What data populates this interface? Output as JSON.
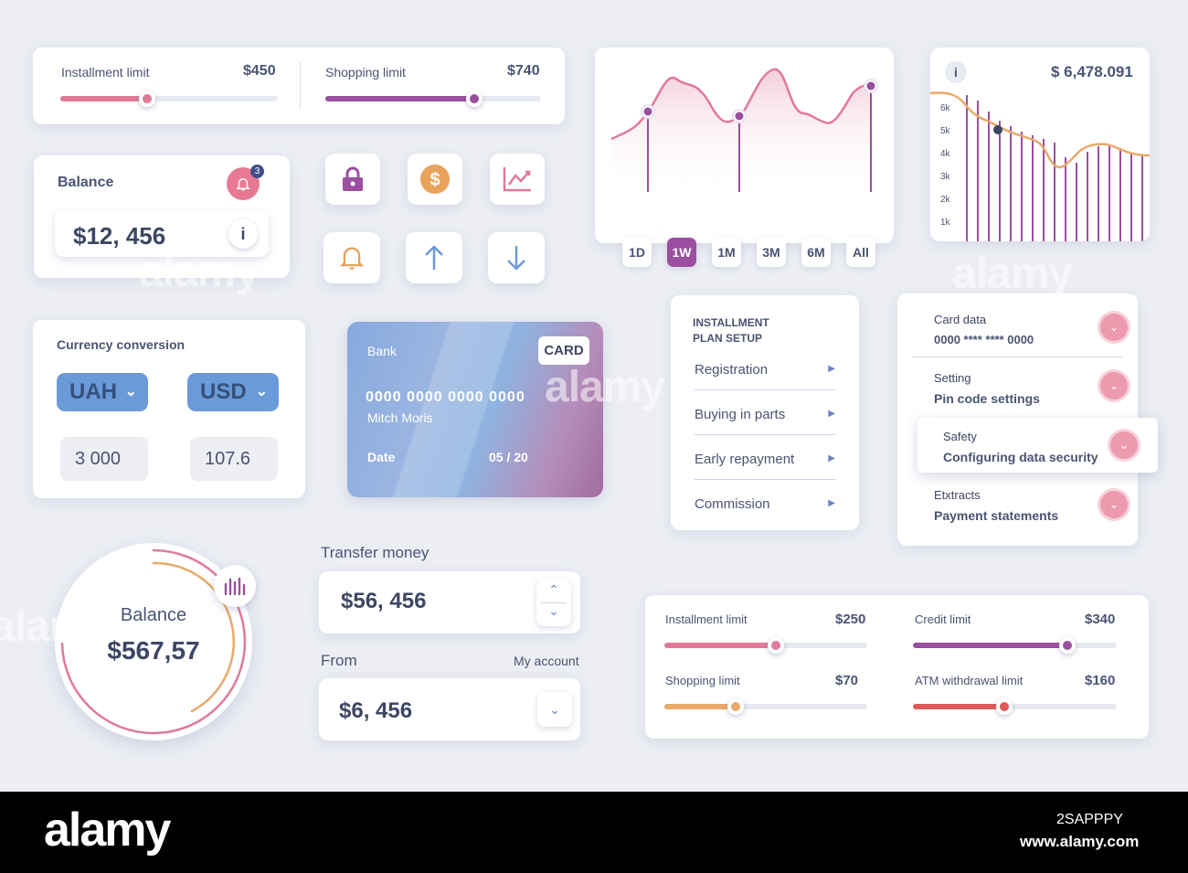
{
  "limits_top": {
    "installment_label": "Installment limit",
    "installment_value": "$450",
    "installment_level": 0.4,
    "installment_color": "#e07a98",
    "shopping_label": "Shopping limit",
    "shopping_value": "$740",
    "shopping_level": 0.69,
    "shopping_color": "#9a4fa0"
  },
  "balance_card": {
    "title": "Balance",
    "amount": "$12, 456",
    "notification_count": "3",
    "info_label": "i"
  },
  "icon_buttons": [
    "lock-icon",
    "dollar-coin-icon",
    "chart-trend-icon",
    "bell-icon",
    "arrow-up-icon",
    "arrow-down-icon"
  ],
  "line_chart": {
    "ranges": [
      "1D",
      "1W",
      "1M",
      "3M",
      "6M",
      "All"
    ],
    "active_range": "1W"
  },
  "bar_chart": {
    "info_label": "i",
    "total": "$ 6,478.091",
    "y_ticks": [
      "6k",
      "5k",
      "4k",
      "3k",
      "2k",
      "1k"
    ]
  },
  "currency": {
    "title": "Currency conversion",
    "from_currency": "UAH",
    "to_currency": "USD",
    "from_amount": "3 000",
    "to_amount": "107.6"
  },
  "bank_card": {
    "bank": "Bank",
    "badge": "CARD",
    "number": "0000 0000 0000 0000",
    "holder": "Mitch Moris",
    "date_label": "Date",
    "expiry": "05 / 20"
  },
  "installment_menu": {
    "title_line1": "INSTALLMENT",
    "title_line2": "PLAN SETUP",
    "items": [
      "Registration",
      "Buying in parts",
      "Early repayment",
      "Commission"
    ]
  },
  "settings": [
    {
      "label": "Card data",
      "value": "0000 **** **** 0000"
    },
    {
      "label": "Setting",
      "value": "Pin code settings"
    },
    {
      "label": "Safety",
      "value": "Configuring data security"
    },
    {
      "label": "Etxtracts",
      "value": "Payment statements"
    }
  ],
  "balance_circle": {
    "title": "Balance",
    "amount": "$567,57"
  },
  "transfer": {
    "title": "Transfer money",
    "amount": "$56, 456",
    "from_label": "From",
    "account_label": "My account",
    "from_amount": "$6, 456"
  },
  "limits_bottom": [
    {
      "label": "Installment limit",
      "value": "$250",
      "level": 0.55,
      "color": "#e07a98"
    },
    {
      "label": "Credit limit",
      "value": "$340",
      "level": 0.76,
      "color": "#9a4fa0"
    },
    {
      "label": "Shopping limit",
      "value": "$70",
      "level": 0.35,
      "color": "#e8a96a"
    },
    {
      "label": "ATM withdrawal limit",
      "value": "$160",
      "level": 0.45,
      "color": "#e05a5a"
    }
  ],
  "footer": {
    "logo": "alamy",
    "image_id": "2SAPPPY",
    "url": "www.alamy.com"
  }
}
